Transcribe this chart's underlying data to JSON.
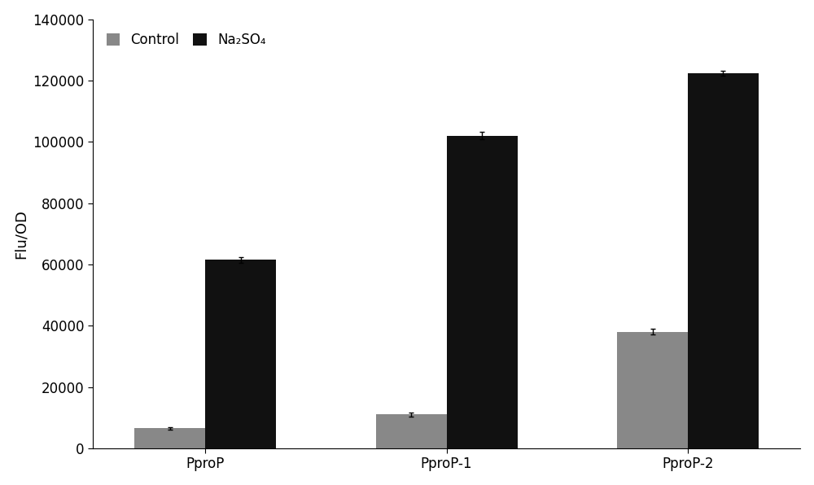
{
  "categories": [
    "PproP",
    "PproP-1",
    "PproP-2"
  ],
  "control_values": [
    6500,
    11000,
    38000
  ],
  "na2so4_values": [
    61500,
    102000,
    122500
  ],
  "control_errors": [
    500,
    700,
    900
  ],
  "na2so4_errors": [
    1000,
    1200,
    800
  ],
  "control_color": "#888888",
  "na2so4_color": "#111111",
  "ylabel": "Flu/OD",
  "ylim": [
    0,
    140000
  ],
  "yticks": [
    0,
    20000,
    40000,
    60000,
    80000,
    100000,
    120000,
    140000
  ],
  "legend_control": "Control",
  "legend_na2so4": "Na₂SO₄",
  "bar_width": 0.22,
  "x_positions": [
    0.25,
    1.0,
    1.75
  ],
  "figsize": [
    10.0,
    5.96
  ],
  "dpi": 100,
  "axis_fontsize": 13,
  "tick_fontsize": 12,
  "legend_fontsize": 12
}
